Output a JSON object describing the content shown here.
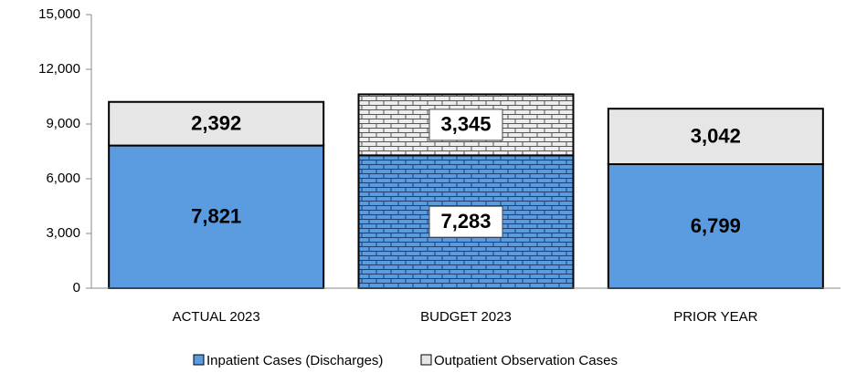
{
  "chart_data": {
    "type": "stacked_bar",
    "categories": [
      "ACTUAL 2023",
      "BUDGET 2023",
      "PRIOR YEAR"
    ],
    "series": [
      {
        "name": "Inpatient Cases (Discharges)",
        "color": "#5b9be0",
        "values": [
          7821,
          7283,
          6799
        ],
        "value_labels": [
          "7,821",
          "7,283",
          "6,799"
        ]
      },
      {
        "name": "Outpatient Observation Cases",
        "color": "#e6e6e6",
        "values": [
          2392,
          3345,
          3042
        ],
        "value_labels": [
          "2,392",
          "3,345",
          "3,042"
        ]
      }
    ],
    "patterns": [
      null,
      "brick",
      null
    ],
    "ylim": [
      0,
      15000
    ],
    "yticks": [
      0,
      {
        "value": 3000,
        "label": "3,000"
      },
      {
        "value": 6000,
        "label": "6,000"
      },
      {
        "value": 9000,
        "label": "9,000"
      },
      {
        "value": 12000,
        "label": "12,000"
      },
      {
        "value": 15000,
        "label": "15,000"
      }
    ],
    "grid": false,
    "legend": "bottom"
  }
}
